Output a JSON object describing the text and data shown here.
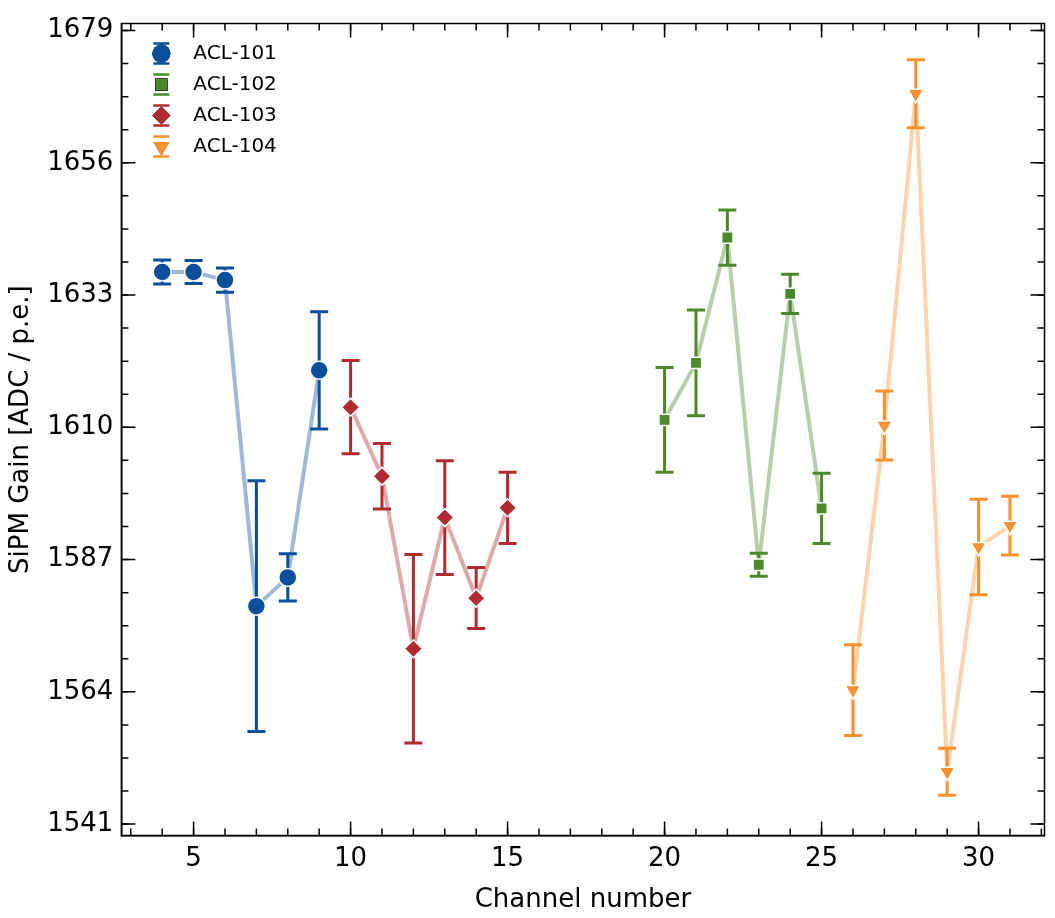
{
  "chart_data": {
    "type": "line",
    "xlabel": "Channel number",
    "ylabel": "SiPM Gain [ADC / p.e.]",
    "xlim": [
      2.7,
      32.1
    ],
    "xticks": [
      5,
      10,
      15,
      20,
      25,
      30
    ],
    "ylim": [
      1539,
      1680.2
    ],
    "yticks": [
      1541,
      1564,
      1587,
      1610,
      1633,
      1656,
      1679
    ],
    "grid": false,
    "legend": "top left",
    "line_style": "solid",
    "series": [
      {
        "name": "ACL-101",
        "color": "#0b4f9c",
        "marker": "circle",
        "x": [
          4,
          5,
          6,
          7,
          8,
          9
        ],
        "values": [
          1637.0,
          1637.0,
          1635.6,
          1578.9,
          1583.9,
          1619.9
        ],
        "errors": [
          2.1,
          2.0,
          2.1,
          21.8,
          4.1,
          10.2
        ]
      },
      {
        "name": "ACL-102",
        "color": "#4a8a2a",
        "marker": "square",
        "x": [
          20,
          21,
          22,
          23,
          24,
          25
        ],
        "values": [
          1611.3,
          1621.2,
          1643.0,
          1586.1,
          1633.2,
          1595.9
        ],
        "errors": [
          9.1,
          9.2,
          4.8,
          2.0,
          3.4,
          6.1
        ]
      },
      {
        "name": "ACL-103",
        "color": "#b02a30",
        "marker": "diamond",
        "x": [
          10,
          11,
          12,
          13,
          14,
          15
        ],
        "values": [
          1613.5,
          1601.5,
          1571.5,
          1594.3,
          1580.3,
          1596.0
        ],
        "errors": [
          8.1,
          5.7,
          16.4,
          9.9,
          5.3,
          6.2
        ]
      },
      {
        "name": "ACL-104",
        "color": "#f7912f",
        "marker": "triangle",
        "x": [
          26,
          27,
          28,
          29,
          30,
          31
        ],
        "values": [
          1564.3,
          1610.3,
          1668.0,
          1550.1,
          1589.2,
          1592.9
        ],
        "errors": [
          7.9,
          6.0,
          5.9,
          4.1,
          8.3,
          5.1
        ]
      }
    ]
  }
}
